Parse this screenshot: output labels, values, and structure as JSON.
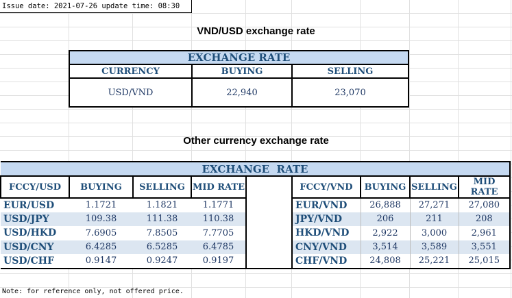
{
  "issue_line": "Issue date: 2021-07-26 update time: 08:30",
  "vnd_usd": {
    "title": "VND/USD exchange rate",
    "header": "EXCHANGE RATE",
    "columns": [
      "CURRENCY",
      "BUYING",
      "SELLING"
    ],
    "row": [
      "USD/VND",
      "22,940",
      "23,070"
    ]
  },
  "other": {
    "title": "Other currency exchange rate",
    "header": "EXCHANGE  RATE",
    "left_columns": [
      "FCCY/USD",
      "BUYING",
      "SELLING",
      "MID RATE"
    ],
    "right_columns": [
      "FCCY/VND",
      "BUYING",
      "SELLING",
      "MID RATE"
    ],
    "left_rows": [
      [
        "EUR/USD",
        "1.1721",
        "1.1821",
        "1.1771"
      ],
      [
        "USD/JPY",
        "109.38",
        "111.38",
        "110.38"
      ],
      [
        "USD/HKD",
        "7.6905",
        "7.8505",
        "7.7705"
      ],
      [
        "USD/CNY",
        "6.4285",
        "6.5285",
        "6.4785"
      ],
      [
        "USD/CHF",
        "0.9147",
        "0.9247",
        "0.9197"
      ]
    ],
    "right_rows": [
      [
        "EUR/VND",
        "26,888",
        "27,271",
        "27,080"
      ],
      [
        "JPY/VND",
        "206",
        "211",
        "208"
      ],
      [
        "HKD/VND",
        "2,922",
        "3,000",
        "2,961"
      ],
      [
        "CNY/VND",
        "3,514",
        "3,589",
        "3,551"
      ],
      [
        "CHF/VND",
        "24,808",
        "25,221",
        "25,015"
      ]
    ]
  },
  "note": "Note: for reference only, not offered price.",
  "colors": {
    "header_fill": "#c5d9f1",
    "alt_row": "#dce6f1",
    "text": "#1f3864"
  }
}
